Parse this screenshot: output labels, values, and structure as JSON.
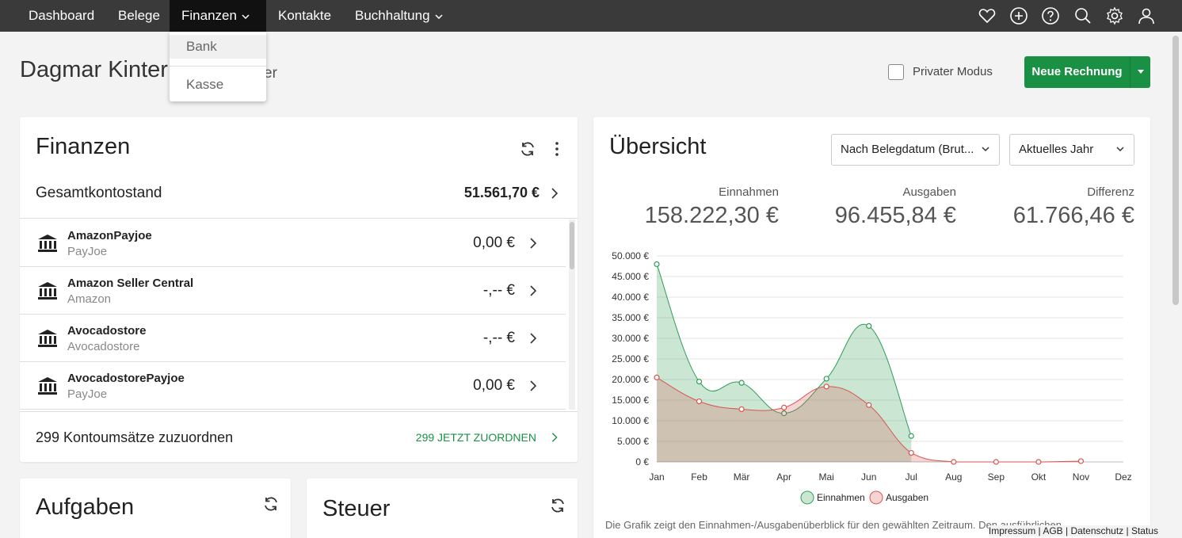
{
  "nav": {
    "items": [
      {
        "label": "Dashboard"
      },
      {
        "label": "Belege"
      },
      {
        "label": "Finanzen"
      },
      {
        "label": "Kontakte"
      },
      {
        "label": "Buchhaltung"
      }
    ],
    "icons": [
      "heart-icon",
      "plus-circle-icon",
      "help-icon",
      "search-icon",
      "settings-icon",
      "user-icon"
    ]
  },
  "dropdown": {
    "items": [
      {
        "label": "Bank"
      },
      {
        "label": "Kasse"
      }
    ]
  },
  "header": {
    "title": "Dagmar Kinter",
    "title_tail": "er",
    "private_mode_label": "Privater Modus",
    "new_invoice_label": "Neue Rechnung"
  },
  "finance": {
    "title": "Finanzen",
    "total_label": "Gesamtkontostand",
    "total_value": "51.561,70 €",
    "accounts": [
      {
        "name": "AmazonPayjoe",
        "sub": "PayJoe",
        "amount": "0,00 €"
      },
      {
        "name": "Amazon Seller Central",
        "sub": "Amazon",
        "amount": "-,-- €"
      },
      {
        "name": "Avocadostore",
        "sub": "Avocadostore",
        "amount": "-,-- €"
      },
      {
        "name": "AvocadostorePayjoe",
        "sub": "PayJoe",
        "amount": "0,00 €"
      }
    ],
    "assign_label": "299 Kontoumsätze zuzuordnen",
    "assign_link": "299 JETZT ZUORDNEN"
  },
  "tasks": {
    "title": "Aufgaben"
  },
  "tax": {
    "title": "Steuer"
  },
  "overview": {
    "title": "Übersicht",
    "filter_date": "Nach Belegdatum (Brut...",
    "filter_period": "Aktuelles Jahr",
    "kpis": [
      {
        "label": "Einnahmen",
        "value": "158.222,30 €"
      },
      {
        "label": "Ausgaben",
        "value": "96.455,84 €"
      },
      {
        "label": "Differenz",
        "value": "61.766,46 €"
      }
    ],
    "footnote": "Die Grafik zeigt den Einnahmen-/Ausgabenüberblick für den gewählten Zeitraum. Den ausführlichen"
  },
  "chart_data": {
    "type": "area",
    "categories": [
      "Jan",
      "Feb",
      "Mär",
      "Apr",
      "Mai",
      "Jun",
      "Jul",
      "Aug",
      "Sep",
      "Okt",
      "Nov",
      "Dez"
    ],
    "y_ticks": [
      "0 €",
      "5.000 €",
      "10.000 €",
      "15.000 €",
      "20.000 €",
      "25.000 €",
      "30.000 €",
      "35.000 €",
      "40.000 €",
      "45.000 €",
      "50.000 €"
    ],
    "ylim": [
      0,
      50000
    ],
    "series": [
      {
        "name": "Einnahmen",
        "color": "#2e9e55",
        "fill": "rgba(46,158,85,0.25)",
        "values": [
          48000,
          19500,
          19200,
          11800,
          20200,
          33000,
          6300,
          null,
          null,
          null,
          null,
          null
        ]
      },
      {
        "name": "Ausgaben",
        "color": "#d9534f",
        "fill": "rgba(217,83,79,0.25)",
        "values": [
          20500,
          14700,
          12800,
          13200,
          18300,
          13800,
          2200,
          0,
          0,
          0,
          200,
          null
        ]
      }
    ],
    "legend_position": "bottom",
    "grid": true
  },
  "footer": {
    "links": [
      "Impressum",
      "AGB",
      "Datenschutz",
      "Status"
    ]
  },
  "colors": {
    "accent": "#1a9045",
    "nav_bg": "#3a3a3a"
  }
}
